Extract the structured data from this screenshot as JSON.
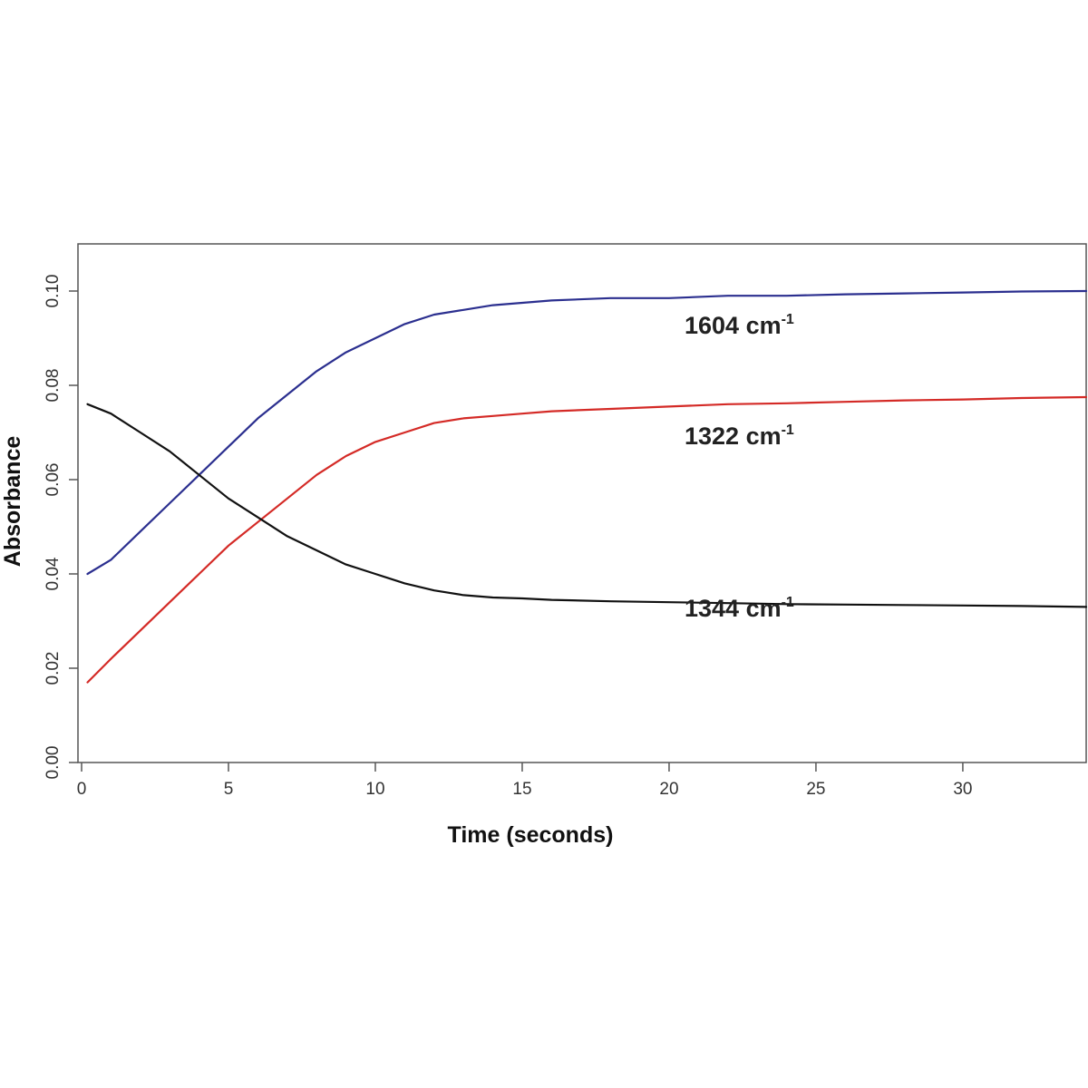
{
  "chart_data": {
    "type": "line",
    "xlabel": "Time (seconds)",
    "ylabel": "Absorbance",
    "xlim": [
      0,
      34.2
    ],
    "ylim": [
      0,
      0.11
    ],
    "xticks": [
      "0",
      "5",
      "10",
      "15",
      "20",
      "25",
      "30"
    ],
    "yticks": [
      "0.00",
      "0.02",
      "0.04",
      "0.06",
      "0.08",
      "0.10"
    ],
    "grid": false,
    "series": [
      {
        "name": "1604 cm-1",
        "label_base": "1604 cm",
        "label_sup": "-1",
        "color": "#2b2f8f",
        "x": [
          0.2,
          1,
          2,
          3,
          4,
          5,
          6,
          7,
          8,
          9,
          10,
          11,
          12,
          13,
          14,
          15,
          16,
          18,
          20,
          22,
          24,
          26,
          28,
          30,
          32,
          34.2
        ],
        "y": [
          0.04,
          0.043,
          0.049,
          0.055,
          0.061,
          0.067,
          0.073,
          0.078,
          0.083,
          0.087,
          0.09,
          0.093,
          0.095,
          0.096,
          0.097,
          0.0975,
          0.098,
          0.0985,
          0.0985,
          0.099,
          0.099,
          0.0993,
          0.0995,
          0.0997,
          0.0999,
          0.1
        ]
      },
      {
        "name": "1322 cm-1",
        "label_base": "1322 cm",
        "label_sup": "-1",
        "color": "#d42a26",
        "x": [
          0.2,
          1,
          2,
          3,
          4,
          5,
          6,
          7,
          8,
          9,
          10,
          11,
          12,
          13,
          14,
          15,
          16,
          18,
          20,
          22,
          24,
          26,
          28,
          30,
          32,
          34.2
        ],
        "y": [
          0.017,
          0.022,
          0.028,
          0.034,
          0.04,
          0.046,
          0.051,
          0.056,
          0.061,
          0.065,
          0.068,
          0.07,
          0.072,
          0.073,
          0.0735,
          0.074,
          0.0745,
          0.075,
          0.0755,
          0.076,
          0.0762,
          0.0765,
          0.0768,
          0.077,
          0.0773,
          0.0775
        ]
      },
      {
        "name": "1344 cm-1",
        "label_base": "1344 cm",
        "label_sup": "-1",
        "color": "#111111",
        "x": [
          0.2,
          1,
          2,
          3,
          4,
          5,
          6,
          7,
          8,
          9,
          10,
          11,
          12,
          13,
          14,
          15,
          16,
          18,
          20,
          22,
          24,
          26,
          28,
          30,
          32,
          34.2
        ],
        "y": [
          0.076,
          0.074,
          0.07,
          0.066,
          0.061,
          0.056,
          0.052,
          0.048,
          0.045,
          0.042,
          0.04,
          0.038,
          0.0365,
          0.0355,
          0.035,
          0.0348,
          0.0345,
          0.0342,
          0.034,
          0.0338,
          0.0336,
          0.0335,
          0.0334,
          0.0333,
          0.0332,
          0.033
        ]
      }
    ]
  }
}
